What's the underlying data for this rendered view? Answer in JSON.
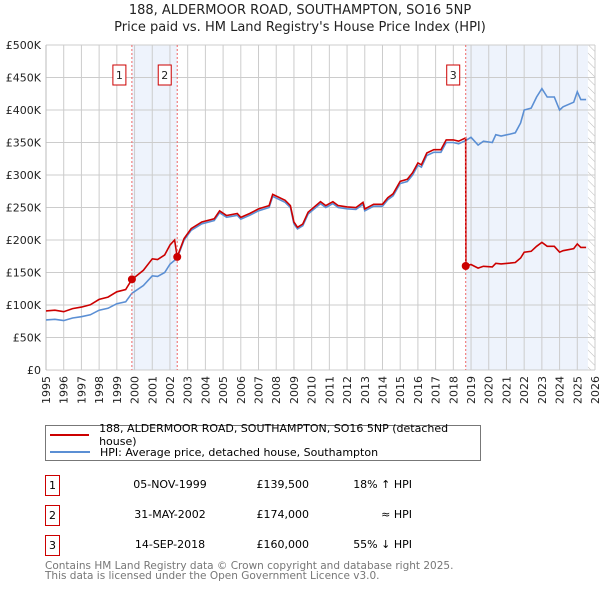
{
  "title": "188, ALDERMOOR ROAD, SOUTHAMPTON, SO16 5NP",
  "subtitle": "Price paid vs. HM Land Registry's House Price Index (HPI)",
  "colors": {
    "property": "#cc0000",
    "hpi": "#5b8fd4",
    "shade": "#eef3fc",
    "grid": "#cccccc"
  },
  "chart_data": {
    "type": "line",
    "title": "188, ALDERMOOR ROAD, SOUTHAMPTON, SO16 5NP",
    "xlim": [
      1995,
      2026
    ],
    "ylim": [
      0,
      500000
    ],
    "x_ticks": [
      "1995",
      "1996",
      "1997",
      "1998",
      "1999",
      "2000",
      "2001",
      "2002",
      "2003",
      "2004",
      "2005",
      "2006",
      "2007",
      "2008",
      "2009",
      "2010",
      "2011",
      "2012",
      "2013",
      "2014",
      "2015",
      "2016",
      "2017",
      "2018",
      "2019",
      "2020",
      "2021",
      "2022",
      "2023",
      "2024",
      "2025",
      "2026"
    ],
    "y_ticks": [
      {
        "v": 0,
        "label": "£0"
      },
      {
        "v": 50000,
        "label": "£50K"
      },
      {
        "v": 100000,
        "label": "£100K"
      },
      {
        "v": 150000,
        "label": "£150K"
      },
      {
        "v": 200000,
        "label": "£200K"
      },
      {
        "v": 250000,
        "label": "£250K"
      },
      {
        "v": 300000,
        "label": "£300K"
      },
      {
        "v": 350000,
        "label": "£350K"
      },
      {
        "v": 400000,
        "label": "£400K"
      },
      {
        "v": 450000,
        "label": "£450K"
      },
      {
        "v": 500000,
        "label": "£500K"
      }
    ],
    "grid": true,
    "hpi_series": [
      [
        1995.0,
        77
      ],
      [
        1995.5,
        78
      ],
      [
        1996.0,
        76
      ],
      [
        1996.5,
        80
      ],
      [
        1997.0,
        82
      ],
      [
        1997.5,
        85
      ],
      [
        1998.0,
        92
      ],
      [
        1998.5,
        95
      ],
      [
        1999.0,
        102
      ],
      [
        1999.5,
        105
      ],
      [
        1999.85,
        118
      ],
      [
        2000.5,
        130
      ],
      [
        2001.0,
        145
      ],
      [
        2001.3,
        144
      ],
      [
        2001.7,
        150
      ],
      [
        2002.0,
        163
      ],
      [
        2002.41,
        172
      ],
      [
        2002.8,
        200
      ],
      [
        2003.2,
        215
      ],
      [
        2003.8,
        225
      ],
      [
        2004.5,
        230
      ],
      [
        2004.8,
        242
      ],
      [
        2005.2,
        235
      ],
      [
        2005.8,
        238
      ],
      [
        2006.0,
        232
      ],
      [
        2006.5,
        238
      ],
      [
        2007.0,
        245
      ],
      [
        2007.6,
        250
      ],
      [
        2007.8,
        267
      ],
      [
        2008.5,
        258
      ],
      [
        2008.8,
        250
      ],
      [
        2009.0,
        225
      ],
      [
        2009.2,
        217
      ],
      [
        2009.5,
        222
      ],
      [
        2009.8,
        240
      ],
      [
        2010.5,
        256
      ],
      [
        2010.8,
        250
      ],
      [
        2011.2,
        256
      ],
      [
        2011.5,
        250
      ],
      [
        2012.0,
        248
      ],
      [
        2012.5,
        247
      ],
      [
        2012.9,
        255
      ],
      [
        2013.0,
        245
      ],
      [
        2013.5,
        252
      ],
      [
        2014.0,
        252
      ],
      [
        2014.3,
        262
      ],
      [
        2014.6,
        268
      ],
      [
        2015.0,
        287
      ],
      [
        2015.4,
        290
      ],
      [
        2015.7,
        300
      ],
      [
        2016.0,
        315
      ],
      [
        2016.2,
        312
      ],
      [
        2016.5,
        330
      ],
      [
        2016.9,
        335
      ],
      [
        2017.3,
        335
      ],
      [
        2017.6,
        350
      ],
      [
        2018.0,
        350
      ],
      [
        2018.3,
        348
      ],
      [
        2018.7,
        353
      ],
      [
        2019.0,
        358
      ],
      [
        2019.4,
        346
      ],
      [
        2019.7,
        352
      ],
      [
        2020.2,
        350
      ],
      [
        2020.4,
        362
      ],
      [
        2020.7,
        360
      ],
      [
        2021.2,
        363
      ],
      [
        2021.5,
        365
      ],
      [
        2021.8,
        380
      ],
      [
        2022.0,
        400
      ],
      [
        2022.4,
        403
      ],
      [
        2022.7,
        420
      ],
      [
        2023.0,
        433
      ],
      [
        2023.3,
        420
      ],
      [
        2023.7,
        420
      ],
      [
        2024.0,
        400
      ],
      [
        2024.2,
        405
      ],
      [
        2024.8,
        412
      ],
      [
        2025.0,
        428
      ],
      [
        2025.2,
        416
      ],
      [
        2025.5,
        416
      ]
    ],
    "hpi_unit": 1000,
    "sales": [
      {
        "id": "1",
        "x": 1999.85,
        "value": 139500,
        "ratio_before": 1.18
      },
      {
        "id": "2",
        "x": 2002.41,
        "value": 174000,
        "peak_before": 200000
      },
      {
        "id": "3",
        "x": 2018.7,
        "value": 160000
      }
    ],
    "shaded_ranges": [
      [
        1999.85,
        2002.41
      ],
      [
        2018.7,
        2025.6
      ]
    ],
    "hatch_from": 2025.6
  },
  "legend": {
    "property": "188, ALDERMOOR ROAD, SOUTHAMPTON, SO16 5NP (detached house)",
    "hpi": "HPI: Average price, detached house, Southampton"
  },
  "transactions": [
    {
      "num": "1",
      "date": "05-NOV-1999",
      "price": "£139,500",
      "hpi": "18% ↑ HPI"
    },
    {
      "num": "2",
      "date": "31-MAY-2002",
      "price": "£174,000",
      "hpi": "≈ HPI"
    },
    {
      "num": "3",
      "date": "14-SEP-2018",
      "price": "£160,000",
      "hpi": "55% ↓ HPI"
    }
  ],
  "footer": {
    "line1": "Contains HM Land Registry data © Crown copyright and database right 2025.",
    "line2": "This data is licensed under the Open Government Licence v3.0."
  }
}
